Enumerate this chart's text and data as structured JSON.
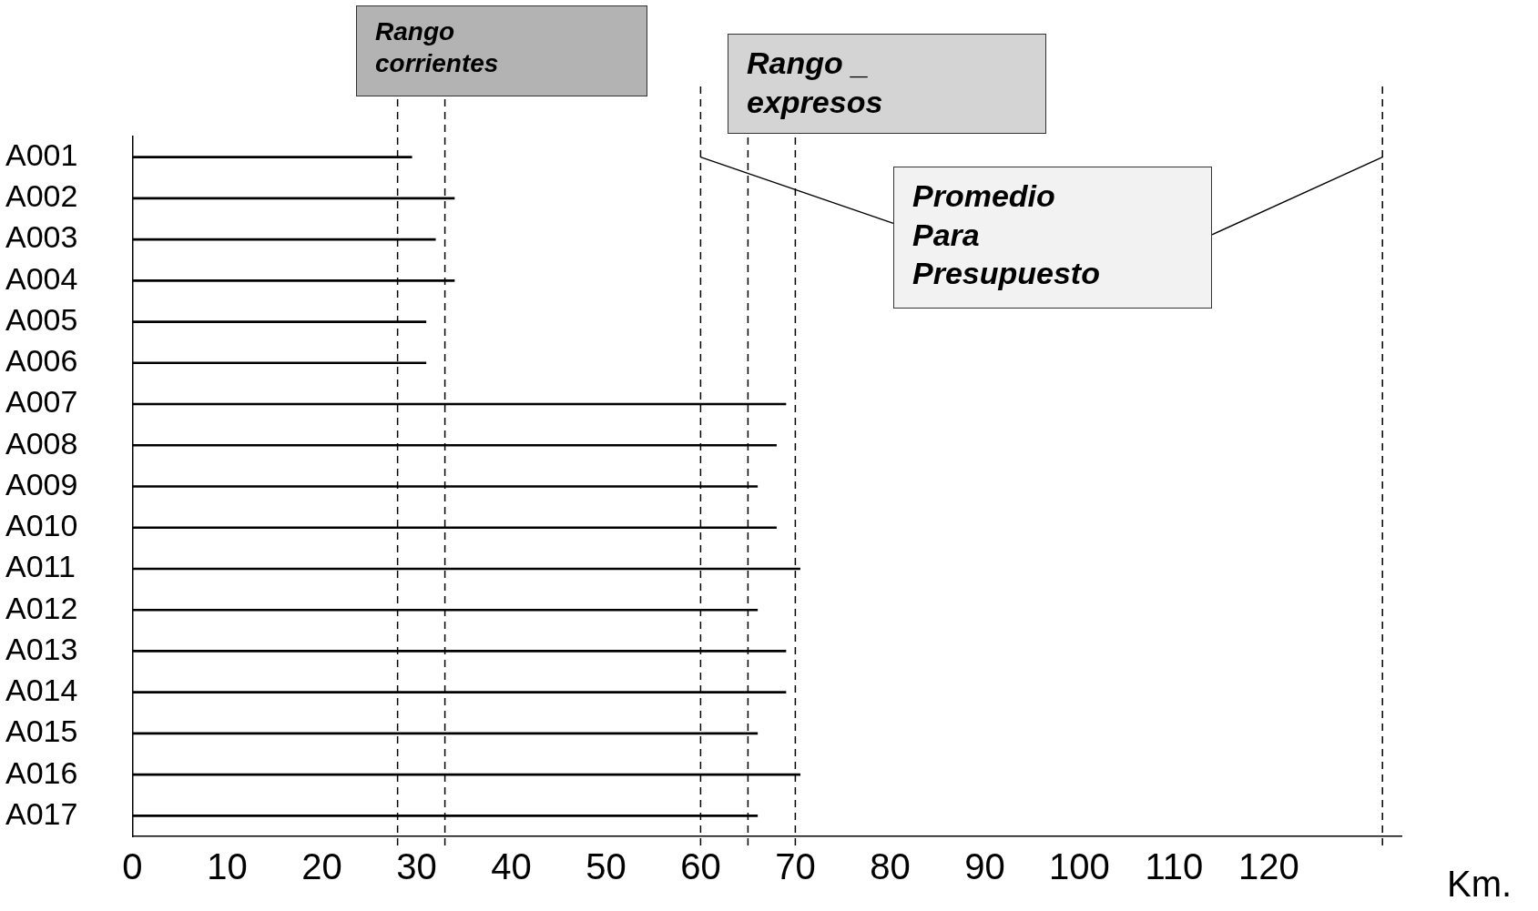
{
  "chart_data": {
    "type": "bar",
    "orientation": "horizontal",
    "categories": [
      "A001",
      "A002",
      "A003",
      "A004",
      "A005",
      "A006",
      "A007",
      "A008",
      "A009",
      "A010",
      "A011",
      "A012",
      "A013",
      "A014",
      "A015",
      "A016",
      "A017"
    ],
    "values": [
      29.5,
      34,
      32,
      34,
      31,
      31,
      69,
      68,
      66,
      68,
      70.5,
      66,
      69,
      69,
      66,
      70.5,
      66
    ],
    "color": "#000000",
    "xlabel": "Km.",
    "xlim": [
      0,
      134
    ],
    "xticks": [
      0,
      10,
      20,
      30,
      40,
      50,
      60,
      70,
      80,
      90,
      100,
      110,
      120
    ],
    "grid": false,
    "legend": false,
    "ref_lines": [
      {
        "axis": "x",
        "value": 28,
        "line_style": "dashed"
      },
      {
        "axis": "x",
        "value": 33,
        "line_style": "dashed"
      },
      {
        "axis": "x",
        "value": 60,
        "line_style": "dashed"
      },
      {
        "axis": "x",
        "value": 65,
        "line_style": "dashed"
      },
      {
        "axis": "x",
        "value": 70,
        "line_style": "dashed"
      },
      {
        "axis": "x",
        "value": 132,
        "line_style": "dashed"
      }
    ],
    "annotations": [
      "Rango\ncorrientes",
      "Rango _\nexpresos",
      {
        "text": "Promedio\nPara\nPresupuesto",
        "x": 60,
        "y": "A001"
      }
    ]
  }
}
